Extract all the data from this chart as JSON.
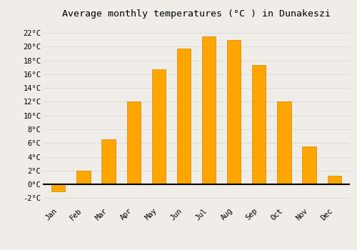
{
  "title": "Average monthly temperatures (°C ) in Dunakeszi",
  "months": [
    "Jan",
    "Feb",
    "Mar",
    "Apr",
    "May",
    "Jun",
    "Jul",
    "Aug",
    "Sep",
    "Oct",
    "Nov",
    "Dec"
  ],
  "values": [
    -1.0,
    2.0,
    6.5,
    12.0,
    16.7,
    19.7,
    21.5,
    21.0,
    17.3,
    12.0,
    5.5,
    1.3
  ],
  "bar_color": "#FFA500",
  "bar_edge_color": "#CC8800",
  "background_color": "#f0ede8",
  "grid_color": "#d8d8d8",
  "ytick_labels": [
    "-2°C",
    "0°C",
    "2°C",
    "4°C",
    "6°C",
    "8°C",
    "10°C",
    "12°C",
    "14°C",
    "16°C",
    "18°C",
    "20°C",
    "22°C"
  ],
  "ytick_values": [
    -2,
    0,
    2,
    4,
    6,
    8,
    10,
    12,
    14,
    16,
    18,
    20,
    22
  ],
  "ylim": [
    -3.0,
    23.5
  ],
  "title_fontsize": 9.5,
  "tick_fontsize": 7.5,
  "font_family": "monospace",
  "bar_width": 0.55
}
